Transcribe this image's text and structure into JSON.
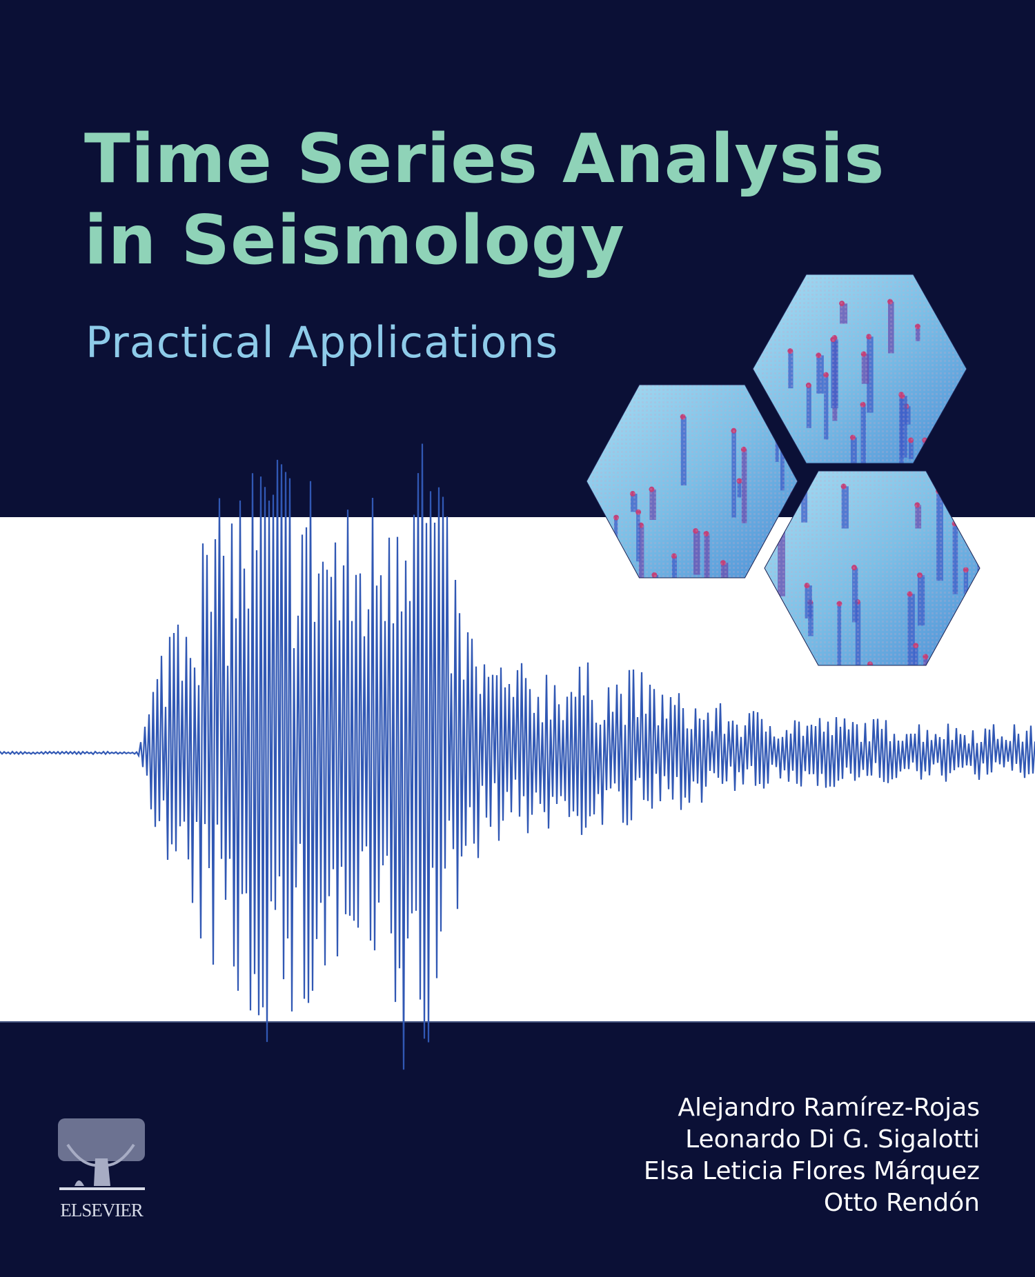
{
  "cover": {
    "title_line1": "Time Series Analysis",
    "title_line2": "in Seismology",
    "subtitle": "Practical Applications",
    "authors": [
      "Alejandro Ramírez-Rojas",
      "Leonardo Di G. Sigalotti",
      "Elsa Leticia Flores Márquez",
      "Otto Rendón"
    ],
    "publisher": "ELSEVIER",
    "illustration": "seismogram-waveform",
    "hexagon_images": "seismic-trace-display-closeups"
  },
  "colors": {
    "navy_background": "#0b1036",
    "title": "#8fd3b8",
    "subtitle": "#8ecbe9",
    "waveform": "#3158b4",
    "authors": "#ffffff"
  }
}
